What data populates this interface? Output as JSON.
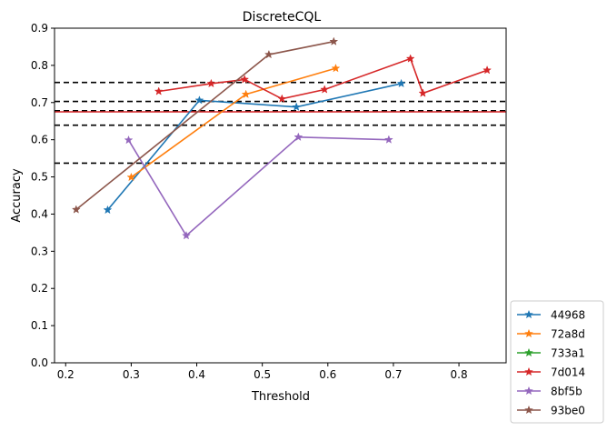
{
  "chart_data": {
    "type": "line",
    "title": "DiscreteCQL",
    "xlabel": "Threshold",
    "ylabel": "Accuracy",
    "xlim": [
      0.183,
      0.872
    ],
    "ylim": [
      0.0,
      0.9
    ],
    "xticks": [
      0.2,
      0.3,
      0.4,
      0.5,
      0.6,
      0.7,
      0.8
    ],
    "xtick_labels": [
      "0.2",
      "0.3",
      "0.4",
      "0.5",
      "0.6",
      "0.7",
      "0.8"
    ],
    "yticks": [
      0.0,
      0.1,
      0.2,
      0.3,
      0.4,
      0.5,
      0.6,
      0.7,
      0.8,
      0.9
    ],
    "ytick_labels": [
      "0.0",
      "0.1",
      "0.2",
      "0.3",
      "0.4",
      "0.5",
      "0.6",
      "0.7",
      "0.8",
      "0.9"
    ],
    "grid": false,
    "legend_position": "lower-right, outside the axes",
    "marker": "star",
    "series": [
      {
        "name": "44968",
        "color": "#1f77b4",
        "x": [
          0.264,
          0.404,
          0.552,
          0.712
        ],
        "y": [
          0.411,
          0.706,
          0.688,
          0.751
        ]
      },
      {
        "name": "72a8d",
        "color": "#ff7f0e",
        "x": [
          0.3,
          0.475,
          0.612
        ],
        "y": [
          0.499,
          0.722,
          0.792
        ]
      },
      {
        "name": "733a1",
        "color": "#2ca02c",
        "x": [],
        "y": []
      },
      {
        "name": "7d014",
        "color": "#d62728",
        "x": [
          0.342,
          0.422,
          0.473,
          0.53,
          0.595,
          0.726,
          0.745,
          0.843
        ],
        "y": [
          0.73,
          0.751,
          0.762,
          0.71,
          0.735,
          0.818,
          0.725,
          0.787
        ]
      },
      {
        "name": "8bf5b",
        "color": "#9467bd",
        "x": [
          0.296,
          0.384,
          0.555,
          0.693
        ],
        "y": [
          0.599,
          0.342,
          0.607,
          0.6
        ]
      },
      {
        "name": "93be0",
        "color": "#8c564b",
        "x": [
          0.216,
          0.51,
          0.609
        ],
        "y": [
          0.412,
          0.829,
          0.864
        ]
      }
    ],
    "hlines": [
      {
        "y": 0.754,
        "color": "#000000",
        "style": "dashed"
      },
      {
        "y": 0.703,
        "color": "#000000",
        "style": "dashed"
      },
      {
        "y": 0.639,
        "color": "#000000",
        "style": "dashed"
      },
      {
        "y": 0.537,
        "color": "#000000",
        "style": "dashed"
      },
      {
        "y": 0.678,
        "color": "#000000",
        "style": "dashed"
      },
      {
        "y": 0.675,
        "color": "#d62728",
        "style": "solid"
      }
    ]
  }
}
